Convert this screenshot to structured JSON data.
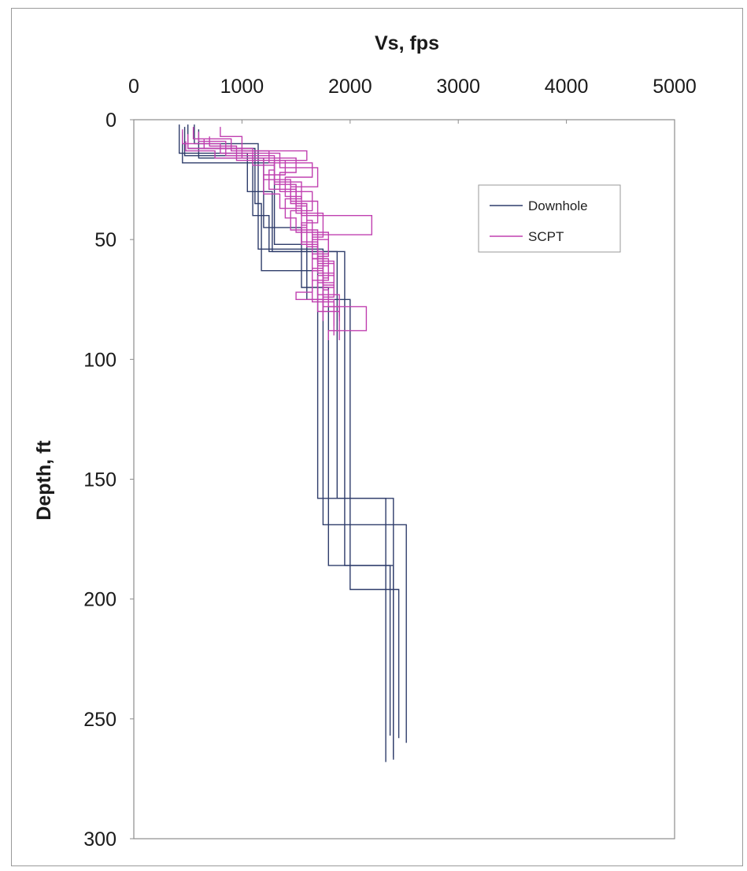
{
  "chart_data": {
    "type": "line",
    "title": "",
    "xlabel": "Vs, fps",
    "ylabel": "Depth, ft",
    "xlim": [
      0,
      5000
    ],
    "ylim": [
      0,
      300
    ],
    "y_inverted": true,
    "x_axis_position": "top",
    "xticks": [
      0,
      1000,
      2000,
      3000,
      4000,
      5000
    ],
    "yticks": [
      0,
      50,
      100,
      150,
      200,
      250,
      300
    ],
    "grid": false,
    "legend": {
      "placement": "top-right",
      "entries": [
        "Downhole",
        "SCPT"
      ]
    },
    "colors": {
      "Downhole": "#2f3d6b",
      "SCPT": "#c040b0"
    },
    "series": [
      {
        "name": "Downhole",
        "group": "Downhole",
        "points": [
          [
            420,
            2
          ],
          [
            420,
            14
          ],
          [
            1050,
            14
          ],
          [
            1050,
            30
          ],
          [
            1280,
            30
          ],
          [
            1280,
            55
          ],
          [
            1880,
            55
          ],
          [
            1880,
            158
          ],
          [
            2330,
            158
          ],
          [
            2330,
            268
          ]
        ]
      },
      {
        "name": "Downhole",
        "group": "Downhole",
        "points": [
          [
            500,
            2
          ],
          [
            500,
            12
          ],
          [
            1120,
            12
          ],
          [
            1120,
            35
          ],
          [
            1180,
            35
          ],
          [
            1180,
            63
          ],
          [
            1700,
            63
          ],
          [
            1700,
            158
          ],
          [
            2400,
            158
          ],
          [
            2400,
            267
          ]
        ]
      },
      {
        "name": "Downhole",
        "group": "Downhole",
        "points": [
          [
            560,
            2
          ],
          [
            560,
            10
          ],
          [
            1150,
            10
          ],
          [
            1150,
            54
          ],
          [
            1750,
            54
          ],
          [
            1750,
            169
          ],
          [
            2520,
            169
          ],
          [
            2520,
            260
          ]
        ]
      },
      {
        "name": "Downhole",
        "group": "Downhole",
        "points": [
          [
            470,
            3
          ],
          [
            470,
            15
          ],
          [
            1100,
            15
          ],
          [
            1100,
            40
          ],
          [
            1250,
            40
          ],
          [
            1250,
            55
          ],
          [
            1950,
            55
          ],
          [
            1950,
            186
          ],
          [
            2370,
            186
          ],
          [
            2370,
            257
          ]
        ]
      },
      {
        "name": "Downhole",
        "group": "Downhole",
        "points": [
          [
            600,
            4
          ],
          [
            600,
            16
          ],
          [
            1200,
            16
          ],
          [
            1200,
            45
          ],
          [
            1550,
            45
          ],
          [
            1550,
            70
          ],
          [
            1800,
            70
          ],
          [
            1800,
            186
          ],
          [
            2400,
            186
          ],
          [
            2400,
            266
          ]
        ]
      },
      {
        "name": "Downhole",
        "group": "Downhole",
        "points": [
          [
            450,
            5
          ],
          [
            450,
            18
          ],
          [
            1300,
            18
          ],
          [
            1300,
            52
          ],
          [
            1600,
            52
          ],
          [
            1600,
            75
          ],
          [
            2000,
            75
          ],
          [
            2000,
            196
          ],
          [
            2450,
            196
          ],
          [
            2450,
            258
          ]
        ]
      },
      {
        "name": "SCPT",
        "group": "SCPT",
        "points": [
          [
            450,
            4
          ],
          [
            450,
            10
          ],
          [
            800,
            10
          ],
          [
            800,
            14
          ],
          [
            1350,
            14
          ],
          [
            1350,
            20
          ],
          [
            1700,
            20
          ],
          [
            1700,
            28
          ],
          [
            1450,
            28
          ],
          [
            1450,
            35
          ],
          [
            1600,
            35
          ],
          [
            1600,
            45
          ],
          [
            1550,
            45
          ],
          [
            1550,
            52
          ],
          [
            1700,
            52
          ],
          [
            1700,
            60
          ],
          [
            1850,
            60
          ],
          [
            1850,
            68
          ],
          [
            1700,
            68
          ],
          [
            1700,
            80
          ],
          [
            1900,
            80
          ],
          [
            1900,
            92
          ]
        ]
      },
      {
        "name": "SCPT",
        "group": "SCPT",
        "points": [
          [
            550,
            3
          ],
          [
            550,
            8
          ],
          [
            900,
            8
          ],
          [
            900,
            13
          ],
          [
            1250,
            13
          ],
          [
            1250,
            18
          ],
          [
            1650,
            18
          ],
          [
            1650,
            24
          ],
          [
            1400,
            24
          ],
          [
            1400,
            32
          ],
          [
            1550,
            32
          ],
          [
            1550,
            40
          ],
          [
            2200,
            40
          ],
          [
            2200,
            48
          ],
          [
            1650,
            48
          ],
          [
            1650,
            58
          ],
          [
            1800,
            58
          ],
          [
            1800,
            66
          ],
          [
            1750,
            66
          ],
          [
            1750,
            78
          ],
          [
            2150,
            78
          ],
          [
            2150,
            88
          ],
          [
            1800,
            88
          ],
          [
            1800,
            92
          ]
        ]
      },
      {
        "name": "SCPT",
        "group": "SCPT",
        "points": [
          [
            500,
            6
          ],
          [
            500,
            12
          ],
          [
            1000,
            12
          ],
          [
            1000,
            16
          ],
          [
            1500,
            16
          ],
          [
            1500,
            22
          ],
          [
            1350,
            22
          ],
          [
            1350,
            30
          ],
          [
            1650,
            30
          ],
          [
            1650,
            38
          ],
          [
            1450,
            38
          ],
          [
            1450,
            46
          ],
          [
            1700,
            46
          ],
          [
            1700,
            55
          ],
          [
            1750,
            55
          ],
          [
            1750,
            62
          ],
          [
            1650,
            62
          ],
          [
            1650,
            72
          ],
          [
            1500,
            72
          ],
          [
            1500,
            75
          ],
          [
            1850,
            75
          ],
          [
            1850,
            86
          ]
        ]
      },
      {
        "name": "SCPT",
        "group": "SCPT",
        "points": [
          [
            600,
            5
          ],
          [
            600,
            9
          ],
          [
            850,
            9
          ],
          [
            850,
            15
          ],
          [
            1300,
            15
          ],
          [
            1300,
            21
          ],
          [
            1250,
            21
          ],
          [
            1250,
            29
          ],
          [
            1500,
            29
          ],
          [
            1500,
            36
          ],
          [
            1600,
            36
          ],
          [
            1600,
            42
          ],
          [
            1650,
            42
          ],
          [
            1650,
            50
          ],
          [
            1800,
            50
          ],
          [
            1800,
            57
          ],
          [
            1700,
            57
          ],
          [
            1700,
            64
          ],
          [
            1850,
            64
          ],
          [
            1850,
            70
          ],
          [
            1750,
            70
          ],
          [
            1750,
            84
          ]
        ]
      },
      {
        "name": "SCPT",
        "group": "SCPT",
        "points": [
          [
            700,
            7
          ],
          [
            700,
            11
          ],
          [
            950,
            11
          ],
          [
            950,
            17
          ],
          [
            1400,
            17
          ],
          [
            1400,
            23
          ],
          [
            1200,
            23
          ],
          [
            1200,
            31
          ],
          [
            1350,
            31
          ],
          [
            1350,
            37
          ],
          [
            1550,
            37
          ],
          [
            1550,
            44
          ],
          [
            1600,
            44
          ],
          [
            1600,
            53
          ],
          [
            1700,
            53
          ],
          [
            1700,
            61
          ],
          [
            1800,
            61
          ],
          [
            1800,
            67
          ],
          [
            1650,
            67
          ],
          [
            1650,
            76
          ],
          [
            1850,
            76
          ],
          [
            1850,
            90
          ]
        ]
      },
      {
        "name": "SCPT",
        "group": "SCPT",
        "points": [
          [
            650,
            8
          ],
          [
            650,
            12
          ],
          [
            1100,
            12
          ],
          [
            1100,
            19
          ],
          [
            1300,
            19
          ],
          [
            1300,
            26
          ],
          [
            1550,
            26
          ],
          [
            1550,
            33
          ],
          [
            1400,
            33
          ],
          [
            1400,
            41
          ],
          [
            1500,
            41
          ],
          [
            1500,
            47
          ],
          [
            1800,
            47
          ],
          [
            1800,
            56
          ],
          [
            1650,
            56
          ],
          [
            1650,
            63
          ],
          [
            1750,
            63
          ],
          [
            1750,
            71
          ],
          [
            1800,
            71
          ],
          [
            1800,
            78
          ],
          [
            1900,
            78
          ],
          [
            1900,
            84
          ]
        ]
      },
      {
        "name": "SCPT",
        "group": "SCPT",
        "points": [
          [
            480,
            9
          ],
          [
            480,
            13
          ],
          [
            750,
            13
          ],
          [
            750,
            16
          ],
          [
            1200,
            16
          ],
          [
            1200,
            25
          ],
          [
            1450,
            25
          ],
          [
            1450,
            34
          ],
          [
            1700,
            34
          ],
          [
            1700,
            43
          ],
          [
            1550,
            43
          ],
          [
            1550,
            51
          ],
          [
            1700,
            51
          ],
          [
            1700,
            59
          ],
          [
            1850,
            59
          ],
          [
            1850,
            65
          ],
          [
            1700,
            65
          ],
          [
            1700,
            73
          ],
          [
            1900,
            73
          ],
          [
            1900,
            82
          ]
        ]
      },
      {
        "name": "SCPT",
        "group": "SCPT",
        "points": [
          [
            800,
            3
          ],
          [
            800,
            7
          ],
          [
            1000,
            7
          ],
          [
            1000,
            13
          ],
          [
            1600,
            13
          ],
          [
            1600,
            17
          ],
          [
            1300,
            17
          ],
          [
            1300,
            27
          ],
          [
            1500,
            27
          ],
          [
            1500,
            39
          ],
          [
            1750,
            39
          ],
          [
            1750,
            49
          ],
          [
            1650,
            49
          ],
          [
            1650,
            58
          ],
          [
            1750,
            58
          ],
          [
            1750,
            69
          ],
          [
            1850,
            69
          ],
          [
            1850,
            74
          ],
          [
            1750,
            74
          ],
          [
            1750,
            80
          ]
        ]
      }
    ]
  }
}
